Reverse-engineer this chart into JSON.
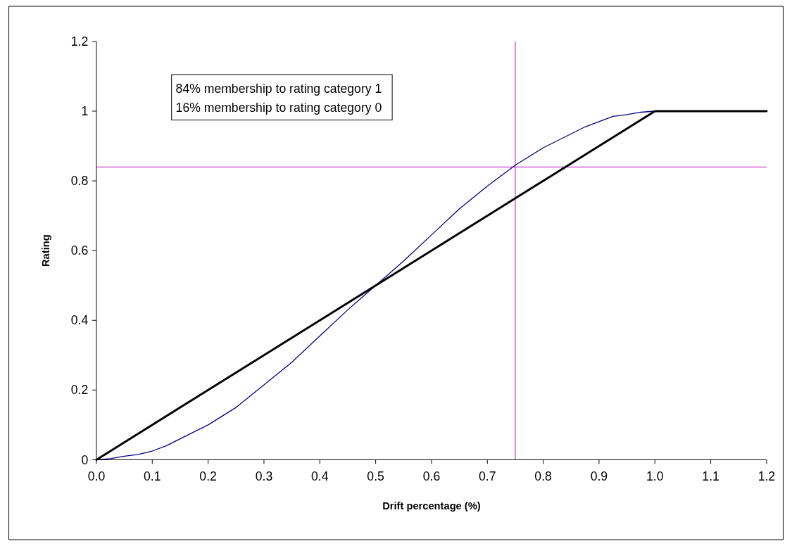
{
  "chart_data": {
    "type": "line",
    "xlabel": "Drift percentage (%)",
    "ylabel": "Rating",
    "xlim": [
      0,
      1.2
    ],
    "ylim": [
      0,
      1.2
    ],
    "xticks": [
      {
        "value": 0,
        "label": "0.0"
      },
      0.1,
      0.2,
      0.3,
      0.4,
      0.5,
      0.6,
      0.7,
      0.8,
      0.9,
      {
        "value": 1,
        "label": "1.0"
      },
      1.1,
      1.2
    ],
    "yticks": [
      0,
      0.2,
      0.4,
      0.6,
      0.8,
      1,
      1.2
    ],
    "grid": false,
    "marker": "none",
    "line_style": "solid",
    "series": [
      {
        "color": "#000080",
        "x": [
          0,
          0.025,
          0.05,
          0.075,
          0.1,
          0.125,
          0.15,
          0.2,
          0.25,
          0.3,
          0.35,
          0.4,
          0.45,
          0.5,
          0.55,
          0.6,
          0.65,
          0.7,
          0.75,
          0.8,
          0.85,
          0.875,
          0.9,
          0.925,
          0.95,
          0.975,
          1
        ],
        "values": [
          0,
          0.003,
          0.01,
          0.015,
          0.025,
          0.04,
          0.06,
          0.1,
          0.15,
          0.215,
          0.28,
          0.355,
          0.43,
          0.5,
          0.57,
          0.645,
          0.72,
          0.785,
          0.845,
          0.895,
          0.935,
          0.955,
          0.97,
          0.985,
          0.99,
          0.997,
          1
        ]
      },
      {
        "color": "#000000",
        "x": [
          0,
          1,
          1.2
        ],
        "values": [
          0,
          1,
          1
        ]
      }
    ],
    "ref_lines": [
      {
        "axis": "x",
        "value": 0.75,
        "color": "#cc44cc"
      },
      {
        "axis": "y",
        "value": 0.84,
        "color": "#cc44cc"
      }
    ],
    "annotations": [
      "84% membership to rating category 1",
      "16% membership to rating category 0"
    ]
  }
}
